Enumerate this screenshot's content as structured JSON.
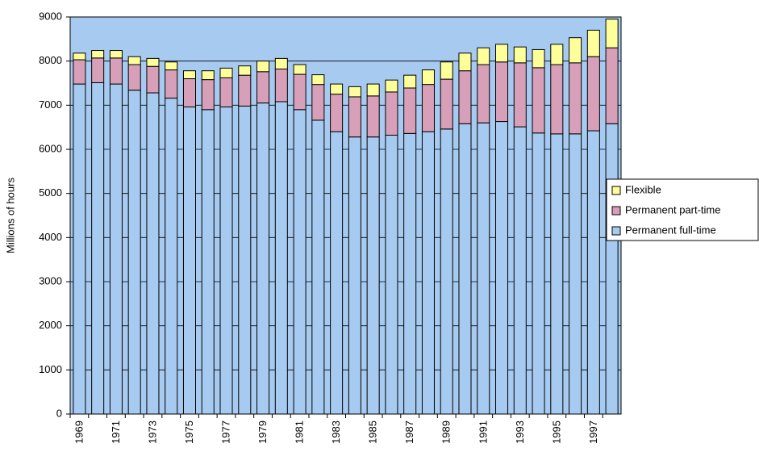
{
  "chart_data": {
    "type": "stacked-bar",
    "y_label": "Millions of hours",
    "categories": [
      "1969",
      null,
      "1971",
      null,
      "1973",
      null,
      "1975",
      null,
      "1977",
      null,
      "1979",
      null,
      "1981",
      null,
      "1983",
      null,
      "1985",
      null,
      "1987",
      null,
      "1989",
      null,
      "1991",
      null,
      "1993",
      null,
      "1995",
      null,
      "1997",
      null
    ],
    "series": [
      {
        "name": "Permanent full-time",
        "color": "#a6caf0",
        "values": [
          7480,
          7510,
          7480,
          7340,
          7280,
          7160,
          6960,
          6900,
          6960,
          6980,
          7050,
          7080,
          6900,
          6660,
          6400,
          6280,
          6280,
          6320,
          6360,
          6400,
          6460,
          6580,
          6600,
          6630,
          6510,
          6370,
          6350,
          6350,
          6420,
          6580
        ]
      },
      {
        "name": "Permanent part-time",
        "color": "#d8a0b8",
        "values": [
          550,
          560,
          590,
          580,
          600,
          640,
          640,
          680,
          660,
          700,
          710,
          740,
          800,
          810,
          850,
          910,
          930,
          980,
          1030,
          1070,
          1130,
          1200,
          1320,
          1350,
          1450,
          1480,
          1570,
          1610,
          1680,
          1720
        ]
      },
      {
        "name": "Flexible",
        "color": "#ffff99",
        "values": [
          150,
          170,
          170,
          180,
          180,
          180,
          180,
          200,
          220,
          210,
          240,
          240,
          220,
          220,
          230,
          230,
          270,
          270,
          290,
          330,
          390,
          400,
          380,
          400,
          360,
          410,
          460,
          570,
          600,
          650
        ]
      }
    ],
    "ylim": [
      0,
      9000
    ],
    "yticks": [
      0,
      1000,
      2000,
      3000,
      4000,
      5000,
      6000,
      7000,
      8000,
      9000
    ],
    "grid": true,
    "plot_background": "#a6caf0",
    "legend": "right"
  }
}
